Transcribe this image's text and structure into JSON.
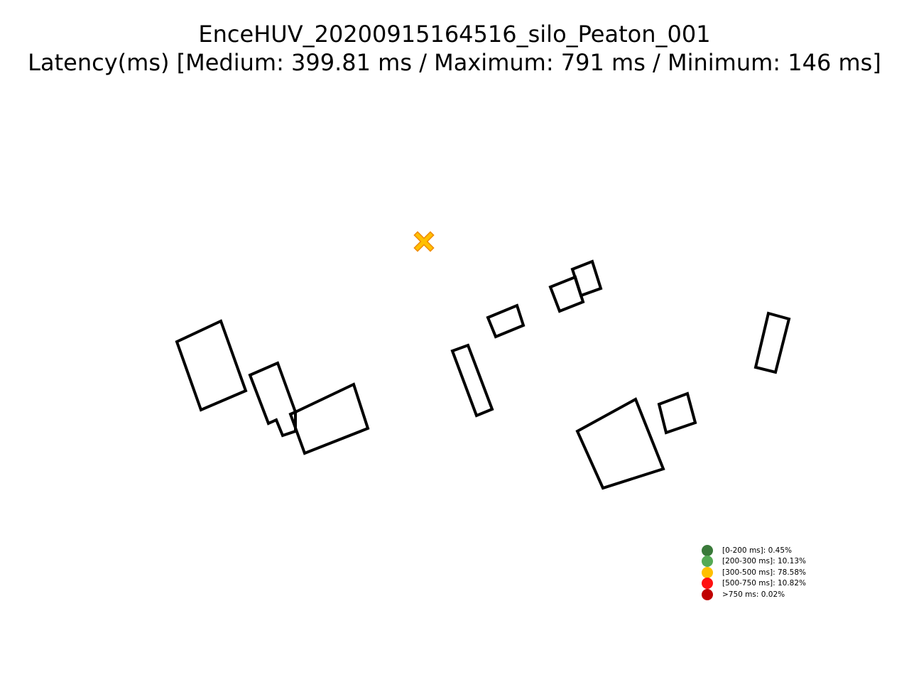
{
  "chart_data": {
    "type": "scatter",
    "title": "EnceHUV_20200915164516_silo_Peaton_001",
    "subtitle": "Latency(ms) [Medium: 399.81 ms / Maximum: 791 ms / Minimum: 146 ms]",
    "grid": false,
    "axes_visible": false,
    "legend_position": "lower-right",
    "marker": "x",
    "colors": {
      "outline": "#000000",
      "marker_fill": "#FFC000",
      "marker_edge": "#F08A00"
    },
    "series": [
      {
        "label": "[0-200 ms]: 0.45%",
        "color": "#3A7A3A"
      },
      {
        "label": "[200-300 ms]: 10.13%",
        "color": "#55AA55"
      },
      {
        "label": "[300-500 ms]: 78.58%",
        "color": "#FFC000"
      },
      {
        "label": "[500-750 ms]: 10.82%",
        "color": "#FF1111"
      },
      {
        "label": ">750 ms: 0.02%",
        "color": "#C00000"
      }
    ]
  }
}
